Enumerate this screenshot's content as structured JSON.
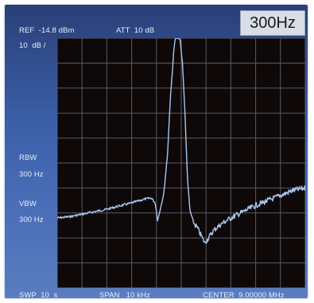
{
  "display": {
    "ref_level": "REF  -14.8 dBm",
    "attenuation": "ATT  10 dB",
    "scale": "10  dB /",
    "rbw_badge": "300Hz",
    "rbw_label": "RBW",
    "rbw_value": "300 Hz",
    "vbw_label": "VBW",
    "vbw_value": "300 Hz",
    "sweep": "SWP  10  s",
    "span": "SPAN   10 kHz",
    "center": "CENTER  9.00000 MHz"
  },
  "colors": {
    "background": "#2f4a8c",
    "screen": "#0e0808",
    "grid": "#5a5a66",
    "trace": "#a8c8ee"
  },
  "chart_data": {
    "type": "line",
    "title": "",
    "xlabel": "",
    "ylabel": "",
    "x_unit": "kHz offset from center",
    "y_unit": "divisions below top",
    "xlim": [
      -5,
      5
    ],
    "ylim": [
      0,
      10
    ],
    "grid": true,
    "grid_divisions": [
      10,
      10
    ],
    "series": [
      {
        "x": [
          -5.0,
          -4.5,
          -4.0,
          -3.5,
          -3.0,
          -2.5,
          -2.0,
          -1.5,
          -1.2,
          -1.05,
          -0.95,
          -0.7,
          -0.55,
          -0.45,
          -0.3,
          -0.25,
          -0.2,
          -0.15,
          -0.05,
          0.05,
          0.15,
          0.25,
          0.35,
          0.5,
          0.65,
          0.8,
          0.95,
          1.1,
          1.3,
          1.6,
          2.0,
          2.5,
          3.0,
          3.5,
          4.0,
          4.5,
          5.0
        ],
        "y": [
          7.2,
          7.15,
          7.05,
          6.95,
          6.85,
          6.72,
          6.6,
          6.45,
          6.4,
          6.6,
          7.3,
          6.2,
          4.6,
          2.6,
          0.5,
          0.05,
          0.0,
          0.0,
          0.05,
          1.0,
          3.0,
          5.6,
          6.9,
          7.4,
          7.6,
          7.9,
          8.2,
          8.0,
          7.7,
          7.45,
          7.2,
          6.95,
          6.7,
          6.5,
          6.3,
          6.1,
          6.0
        ]
      }
    ]
  }
}
